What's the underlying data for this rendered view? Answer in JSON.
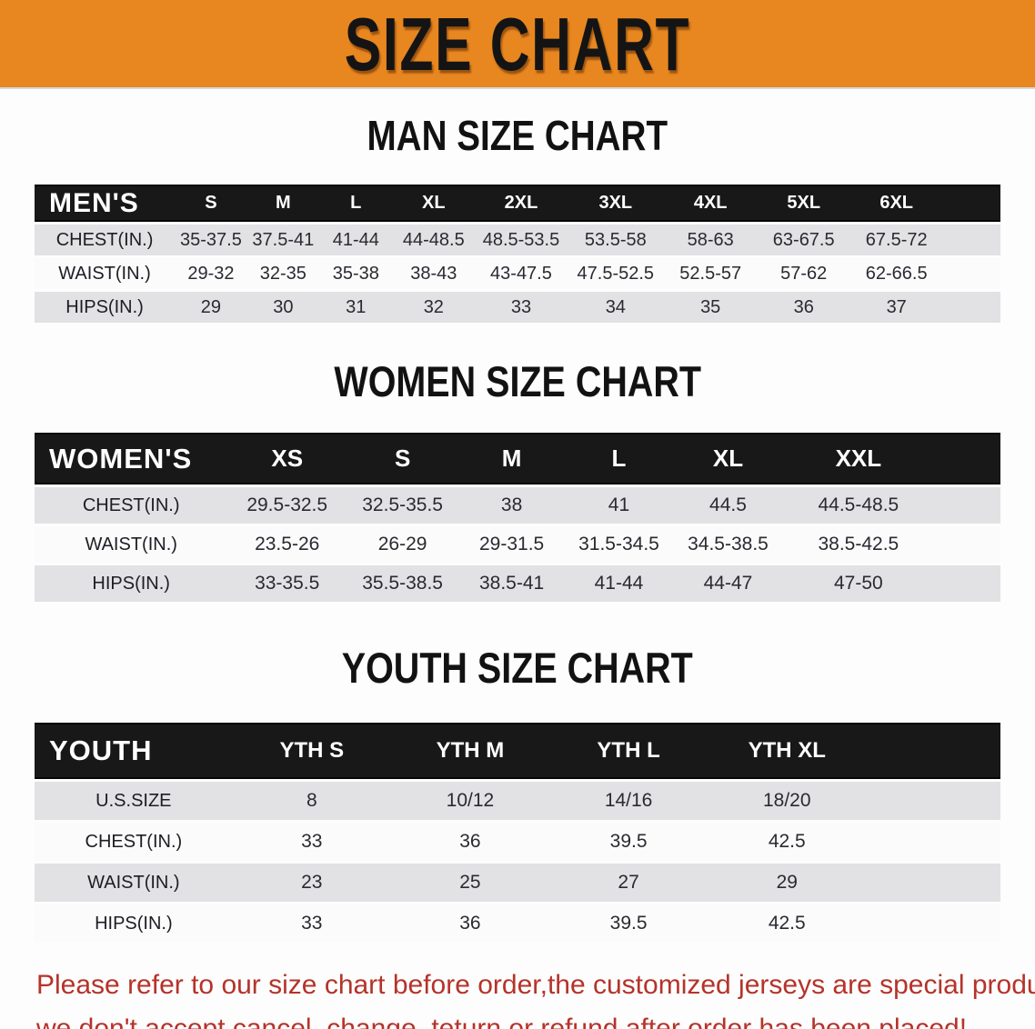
{
  "banner": {
    "title": "SIZE CHART",
    "bg_color": "#e8871f",
    "text_color": "#141414"
  },
  "colors": {
    "table_header_bg": "#181818",
    "table_header_text": "#ffffff",
    "row_shade": "#e2e2e4",
    "row_light": "#fbfbfb",
    "disclaimer_text": "#b5332a"
  },
  "sections": [
    {
      "heading": "MAN SIZE CHART",
      "table": {
        "group_label": "MEN'S",
        "columns": [
          "S",
          "M",
          "L",
          "XL",
          "2XL",
          "3XL",
          "4XL",
          "5XL",
          "6XL"
        ],
        "rows": [
          {
            "label": "CHEST(IN.)",
            "values": [
              "35-37.5",
              "37.5-41",
              "41-44",
              "44-48.5",
              "48.5-53.5",
              "53.5-58",
              "58-63",
              "63-67.5",
              "67.5-72"
            ]
          },
          {
            "label": "WAIST(IN.)",
            "values": [
              "29-32",
              "32-35",
              "35-38",
              "38-43",
              "43-47.5",
              "47.5-52.5",
              "52.5-57",
              "57-62",
              "62-66.5"
            ]
          },
          {
            "label": "HIPS(IN.)",
            "values": [
              "29",
              "30",
              "31",
              "32",
              "33",
              "34",
              "35",
              "36",
              "37"
            ]
          }
        ]
      }
    },
    {
      "heading": "WOMEN SIZE CHART",
      "table": {
        "group_label": "WOMEN'S",
        "columns": [
          "XS",
          "S",
          "M",
          "L",
          "XL",
          "XXL"
        ],
        "rows": [
          {
            "label": "CHEST(IN.)",
            "values": [
              "29.5-32.5",
              "32.5-35.5",
              "38",
              "41",
              "44.5",
              "44.5-48.5"
            ]
          },
          {
            "label": "WAIST(IN.)",
            "values": [
              "23.5-26",
              "26-29",
              "29-31.5",
              "31.5-34.5",
              "34.5-38.5",
              "38.5-42.5"
            ]
          },
          {
            "label": "HIPS(IN.)",
            "values": [
              "33-35.5",
              "35.5-38.5",
              "38.5-41",
              "41-44",
              "44-47",
              "47-50"
            ]
          }
        ]
      }
    },
    {
      "heading": "YOUTH SIZE CHART",
      "table": {
        "group_label": "YOUTH",
        "columns": [
          "YTH S",
          "YTH M",
          "YTH L",
          "YTH XL"
        ],
        "rows": [
          {
            "label": "U.S.SIZE",
            "values": [
              "8",
              "10/12",
              "14/16",
              "18/20"
            ]
          },
          {
            "label": "CHEST(IN.)",
            "values": [
              "33",
              "36",
              "39.5",
              "42.5"
            ]
          },
          {
            "label": "WAIST(IN.)",
            "values": [
              "23",
              "25",
              "27",
              "29"
            ]
          },
          {
            "label": "HIPS(IN.)",
            "values": [
              "33",
              "36",
              "39.5",
              "42.5"
            ]
          }
        ]
      }
    }
  ],
  "disclaimer": {
    "line1": "Please refer to our size chart before order,the customized jerseys are special products,",
    "line2": "we don't accept cancel, change, teturn or refund after order has been placed!"
  }
}
